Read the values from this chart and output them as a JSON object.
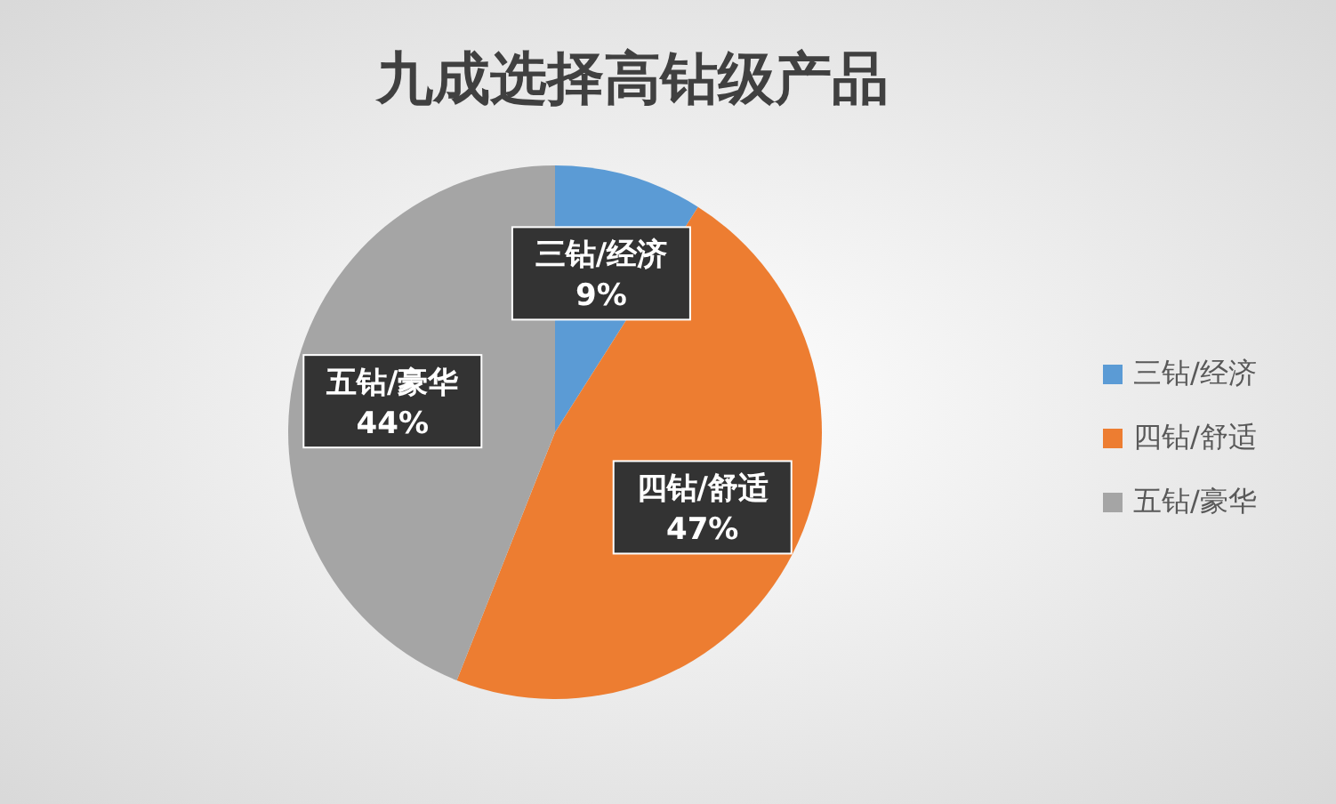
{
  "chart_data": {
    "type": "pie",
    "title": "九成选择高钻级产品",
    "categories": [
      "三钻/经济",
      "四钻/舒适",
      "五钻/豪华"
    ],
    "values": [
      9,
      47,
      44
    ],
    "colors": [
      "#5b9bd5",
      "#ed7d31",
      "#a5a5a5"
    ],
    "value_labels": [
      "9%",
      "47%",
      "44%"
    ],
    "legend": "right"
  }
}
